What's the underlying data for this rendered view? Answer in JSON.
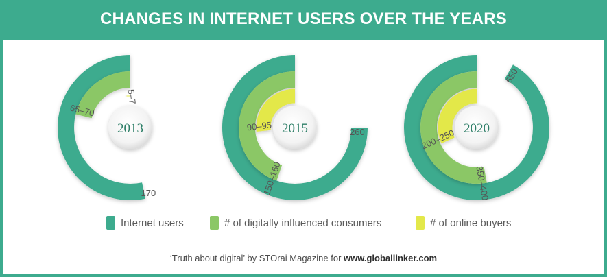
{
  "header": {
    "title": "CHANGES IN INTERNET USERS OVER THE YEARS"
  },
  "chart_data": {
    "type": "radial-bar",
    "title": "CHANGES IN INTERNET USERS OVER THE YEARS",
    "units_note": "",
    "colors": {
      "internet_users": "#3dab8e",
      "digitally_influenced": "#8bc766",
      "online_buyers": "#e3e84a"
    },
    "series": [
      {
        "name": "Internet users",
        "key": "internet_users",
        "color": "#3dab8e"
      },
      {
        "name": "# of digitally influenced consumers",
        "key": "digitally_influenced",
        "color": "#8bc766"
      },
      {
        "name": "# of online buyers",
        "key": "online_buyers",
        "color": "#e3e84a"
      }
    ],
    "groups": [
      {
        "year": "2013",
        "values": {
          "internet_users": 170,
          "digitally_influenced": 67.5,
          "online_buyers": 6
        },
        "labels": {
          "internet_users": "170",
          "digitally_influenced": "65–70",
          "online_buyers": "5–7"
        }
      },
      {
        "year": "2015",
        "values": {
          "internet_users": 260,
          "digitally_influenced": 155,
          "online_buyers": 92.5
        },
        "labels": {
          "internet_users": "260",
          "digitally_influenced": "150–160",
          "online_buyers": "90–95"
        }
      },
      {
        "year": "2020",
        "values": {
          "internet_users": 650,
          "digitally_influenced": 375,
          "online_buyers": 225
        },
        "labels": {
          "internet_users": "650",
          "digitally_influenced": "350–400",
          "online_buyers": "200–250"
        }
      }
    ]
  },
  "legend": [
    {
      "label": "Internet users",
      "color": "#3dab8e"
    },
    {
      "label": "# of digitally influenced consumers",
      "color": "#8bc766"
    },
    {
      "label": "# of online buyers",
      "color": "#e3e84a"
    }
  ],
  "footer": {
    "prefix": "‘Truth about digital’ by STOrai Magazine for ",
    "site": "www.globallinker.com"
  }
}
